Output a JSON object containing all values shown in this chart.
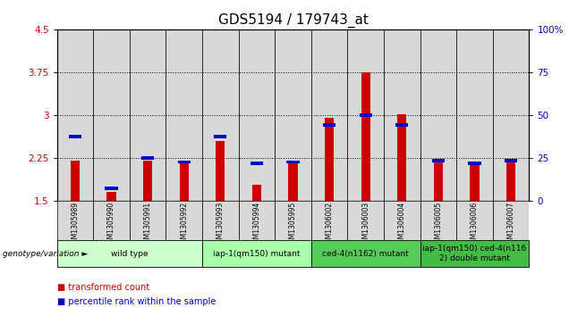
{
  "title": "GDS5194 / 179743_at",
  "samples": [
    "GSM1305989",
    "GSM1305990",
    "GSM1305991",
    "GSM1305992",
    "GSM1305993",
    "GSM1305994",
    "GSM1305995",
    "GSM1306002",
    "GSM1306003",
    "GSM1306004",
    "GSM1306005",
    "GSM1306006",
    "GSM1306007"
  ],
  "red_values": [
    2.2,
    1.65,
    2.2,
    2.15,
    2.55,
    1.78,
    2.15,
    2.95,
    3.75,
    3.02,
    2.2,
    2.15,
    2.2
  ],
  "blue_values": [
    2.62,
    1.72,
    2.25,
    2.18,
    2.62,
    2.15,
    2.18,
    2.82,
    3.0,
    2.82,
    2.2,
    2.15,
    2.2
  ],
  "y_min": 1.5,
  "y_max": 4.5,
  "y_ticks": [
    1.5,
    2.25,
    3.0,
    3.75,
    4.5
  ],
  "y_right_ticks": [
    0,
    25,
    50,
    75,
    100
  ],
  "groups": [
    {
      "label": "wild type",
      "start": 0,
      "end": 4,
      "color": "#ccffcc"
    },
    {
      "label": "iap-1(qm150) mutant",
      "start": 4,
      "end": 7,
      "color": "#aaffaa"
    },
    {
      "label": "ced-4(n1162) mutant",
      "start": 7,
      "end": 10,
      "color": "#55cc55"
    },
    {
      "label": "iap-1(qm150) ced-4(n116\n2) double mutant",
      "start": 10,
      "end": 13,
      "color": "#44bb44"
    }
  ],
  "xlabel_genotype": "genotype/variation",
  "legend_red": "transformed count",
  "legend_blue": "percentile rank within the sample",
  "bar_width": 0.25,
  "bg_color": "#d8d8d8",
  "cell_color": "#c8c8c8",
  "red_color": "#cc0000",
  "blue_color": "#0000cc",
  "title_fontsize": 11,
  "tick_fontsize": 7.5,
  "label_fontsize": 6,
  "group_fontsize": 6.5
}
